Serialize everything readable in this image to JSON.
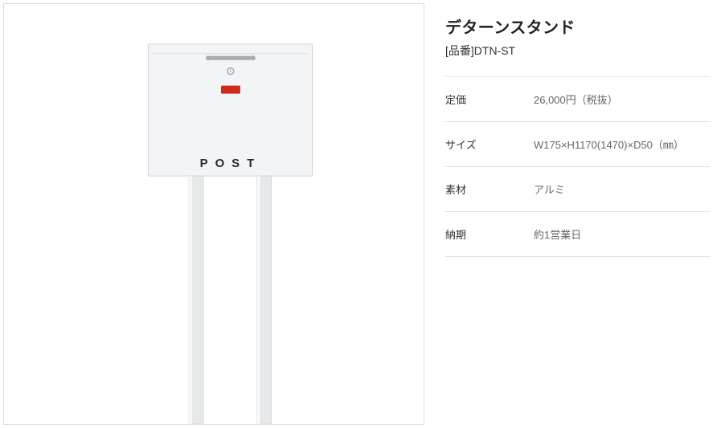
{
  "product": {
    "title": "デターンスタンド",
    "model_prefix": "[品番]",
    "model": "DTN-ST",
    "image_label_text": "POST",
    "image_colors": {
      "box_fill": "#f2f4f5",
      "box_stroke": "#cfd3d6",
      "leg_fill": "#e6e9ea",
      "leg_highlight": "#f7f8f9",
      "handle": "#a8adb1",
      "lock": "#9ea3a7",
      "badge_bg": "#d02a1e",
      "badge_text": "#ffffff",
      "label_text": "#2a2a2a"
    }
  },
  "specs": [
    {
      "label": "定価",
      "value": "26,000円（税抜）"
    },
    {
      "label": "サイズ",
      "value": "W175×H1170(1470)×D50（㎜）"
    },
    {
      "label": "素材",
      "value": "アルミ"
    },
    {
      "label": "納期",
      "value": "約1営業日"
    }
  ],
  "layout": {
    "border_color": "#dcdcdc",
    "divider_color": "#e2e2e2"
  }
}
